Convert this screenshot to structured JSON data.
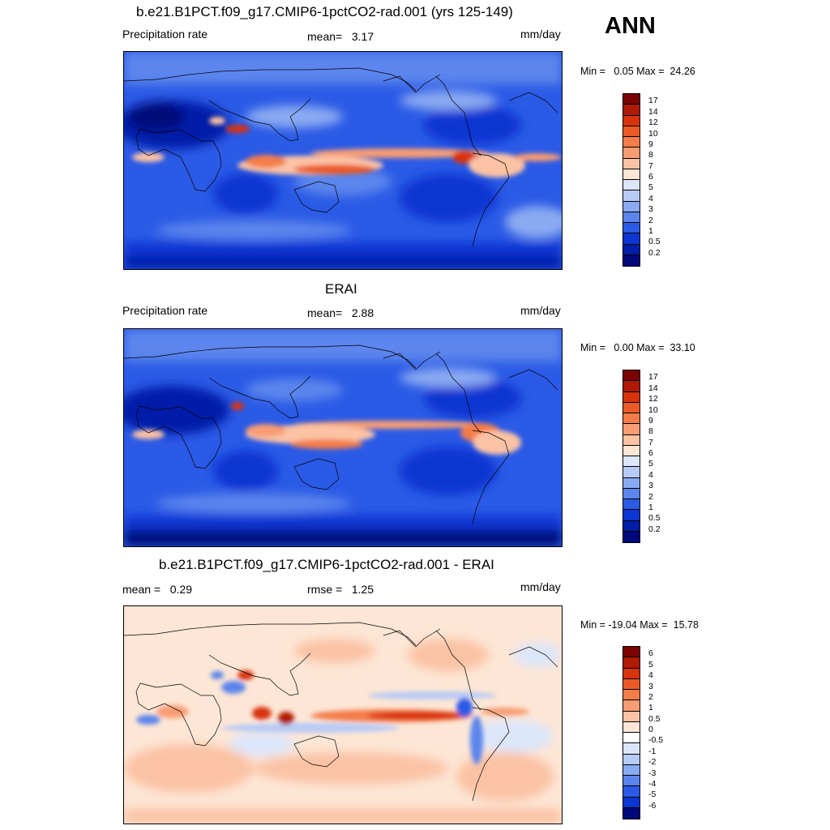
{
  "season": "ANN",
  "panels": [
    {
      "title": "b.e21.B1PCT.f09_g17.CMIP6-1pctCO2-rad.001 (yrs 125-149)",
      "left_label": "Precipitation rate",
      "center_label": "mean=   3.17",
      "units": "mm/day",
      "minmax": "Min =   0.05 Max =  24.26",
      "colorbar": {
        "labels": [
          "17",
          "14",
          "12",
          "10",
          "9",
          "8",
          "7",
          "6",
          "5",
          "4",
          "3",
          "2",
          "1",
          "0.5",
          "0.2"
        ],
        "colors": [
          "#7a0403",
          "#b01a03",
          "#d8330a",
          "#ea5a26",
          "#f47d49",
          "#f89c73",
          "#fbc2a4",
          "#fde6d5",
          "#dbe6fb",
          "#b7cbf6",
          "#8aaaf2",
          "#5b85ed",
          "#2b5ae6",
          "#0b36d2",
          "#001ea8",
          "#00087a"
        ]
      },
      "map_type": "absolute"
    },
    {
      "title": "ERAI",
      "left_label": "Precipitation rate",
      "center_label": "mean=   2.88",
      "units": "mm/day",
      "minmax": "Min =   0.00 Max =  33.10",
      "colorbar": {
        "labels": [
          "17",
          "14",
          "12",
          "10",
          "9",
          "8",
          "7",
          "6",
          "5",
          "4",
          "3",
          "2",
          "1",
          "0.5",
          "0.2"
        ],
        "colors": [
          "#7a0403",
          "#b01a03",
          "#d8330a",
          "#ea5a26",
          "#f47d49",
          "#f89c73",
          "#fbc2a4",
          "#fde6d5",
          "#dbe6fb",
          "#b7cbf6",
          "#8aaaf2",
          "#5b85ed",
          "#2b5ae6",
          "#0b36d2",
          "#001ea8",
          "#00087a"
        ]
      },
      "map_type": "absolute"
    },
    {
      "title": "b.e21.B1PCT.f09_g17.CMIP6-1pctCO2-rad.001 - ERAI",
      "left_label": "mean =   0.29",
      "center_label": "rmse =   1.25",
      "units": "mm/day",
      "minmax": "Min = -19.04 Max =  15.78",
      "colorbar": {
        "labels": [
          "6",
          "5",
          "4",
          "3",
          "2",
          "1",
          "0.5",
          "0",
          "-0.5",
          "-1",
          "-2",
          "-3",
          "-4",
          "-5",
          "-6"
        ],
        "colors": [
          "#7a0403",
          "#b01a03",
          "#d8330a",
          "#ea5a26",
          "#f47d49",
          "#f89c73",
          "#fbc2a4",
          "#fde6d5",
          "#ffffff",
          "#dbe6fb",
          "#b7cbf6",
          "#8aaaf2",
          "#5b85ed",
          "#2b5ae6",
          "#0b36d2",
          "#00087a"
        ]
      },
      "map_type": "difference"
    }
  ]
}
